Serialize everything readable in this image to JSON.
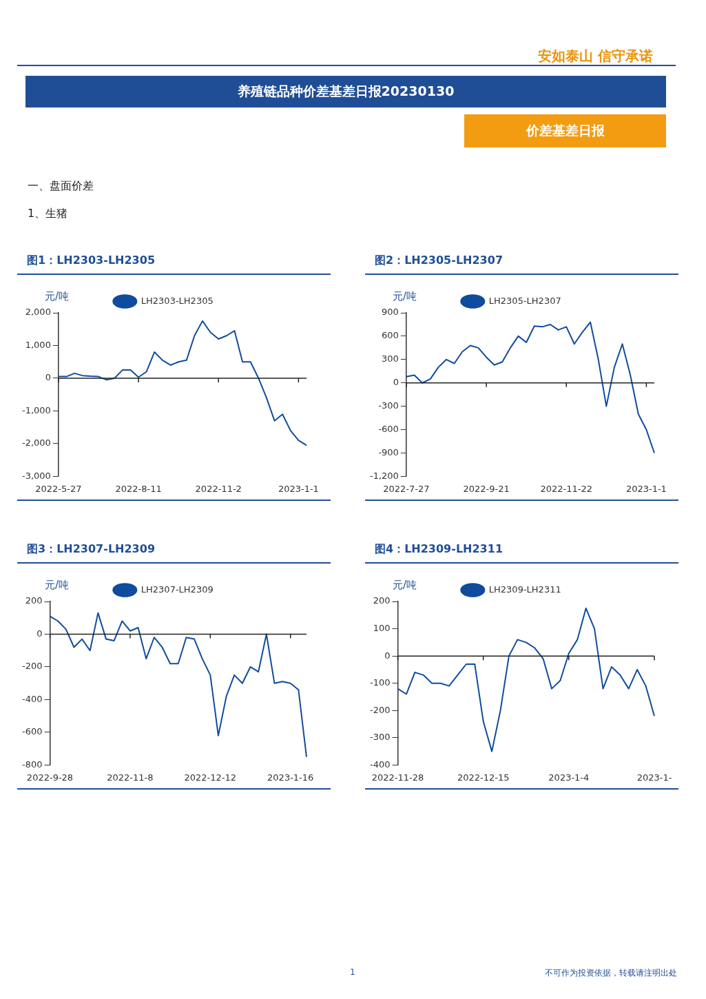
{
  "chart_data": [
    {
      "type": "other",
      "title": "养殖链品种价差基差日报20230130",
      "subtitle": "价差基差日报",
      "annotations": [
        "安如泰山 信守承诺",
        "一、盘面价差",
        "1、生猪",
        "1",
        "不可作为投资依据，转载请注明出处"
      ]
    },
    {
      "type": "line",
      "title": "图1：LH2303-LH2305",
      "ylabel": "元/吨",
      "legend": "top",
      "grid": false,
      "ref_lines": [
        {
          "axis": "y",
          "value": 0,
          "color": "#222222"
        }
      ],
      "categories": [
        "2022-5-27",
        null,
        null,
        null,
        null,
        null,
        null,
        null,
        null,
        null,
        "2022-8-11",
        null,
        null,
        null,
        null,
        null,
        null,
        null,
        null,
        null,
        "2022-11-2",
        null,
        null,
        null,
        null,
        null,
        null,
        null,
        null,
        null,
        "2023-1-1",
        null
      ],
      "ylim": [
        -3000,
        2000
      ],
      "yticks": [
        {
          "value": -3000,
          "label": "-3,000"
        },
        {
          "value": -2000,
          "label": "-2,000"
        },
        {
          "value": -1000,
          "label": "-1,000"
        },
        0,
        {
          "value": 1000,
          "label": "1,000"
        },
        {
          "value": 2000,
          "label": "2,000"
        }
      ],
      "series": [
        {
          "name": "LH2303-LH2305",
          "color": "#0f4c9e",
          "values": [
            50,
            50,
            150,
            80,
            60,
            50,
            -50,
            0,
            250,
            250,
            30,
            200,
            800,
            550,
            400,
            500,
            550,
            1300,
            1750,
            1400,
            1200,
            1300,
            1450,
            500,
            500,
            0,
            -600,
            -1300,
            -1100,
            -1600,
            -1900,
            -2050
          ]
        }
      ]
    },
    {
      "type": "line",
      "title": "图2：LH2305-LH2307",
      "ylabel": "元/吨",
      "legend": "top",
      "grid": false,
      "ref_lines": [
        {
          "axis": "y",
          "value": 0,
          "color": "#222222"
        }
      ],
      "categories": [
        "2022-7-27",
        null,
        null,
        null,
        null,
        null,
        null,
        null,
        null,
        null,
        "2022-9-21",
        null,
        null,
        null,
        null,
        null,
        null,
        null,
        null,
        null,
        "2022-11-22",
        null,
        null,
        null,
        null,
        null,
        null,
        null,
        null,
        null,
        "2023-1-1",
        null
      ],
      "ylim": [
        -1200,
        900
      ],
      "yticks": [
        {
          "value": -1200,
          "label": "-1,200"
        },
        -900,
        -600,
        -300,
        0,
        300,
        600,
        900
      ],
      "series": [
        {
          "name": "LH2305-LH2307",
          "color": "#0f4c9e",
          "values": [
            80,
            100,
            0,
            50,
            200,
            300,
            250,
            400,
            480,
            450,
            330,
            230,
            270,
            450,
            600,
            520,
            730,
            720,
            750,
            680,
            720,
            500,
            650,
            780,
            300,
            -300,
            200,
            500,
            100,
            -400,
            -600,
            -900
          ]
        }
      ]
    },
    {
      "type": "line",
      "title": "图3：LH2307-LH2309",
      "ylabel": "元/吨",
      "legend": "top",
      "grid": false,
      "ref_lines": [
        {
          "axis": "y",
          "value": 0,
          "color": "#222222"
        }
      ],
      "categories": [
        "2022-9-28",
        null,
        null,
        null,
        null,
        null,
        null,
        null,
        null,
        null,
        "2022-11-8",
        null,
        null,
        null,
        null,
        null,
        null,
        null,
        null,
        null,
        "2022-12-12",
        null,
        null,
        null,
        null,
        null,
        null,
        null,
        null,
        null,
        "2023-1-16",
        null,
        null
      ],
      "ylim": [
        -800,
        200
      ],
      "yticks": [
        -800,
        -600,
        -400,
        -200,
        0,
        200
      ],
      "series": [
        {
          "name": "LH2307-LH2309",
          "color": "#0f4c9e",
          "values": [
            110,
            80,
            30,
            -80,
            -30,
            -100,
            130,
            -30,
            -40,
            80,
            20,
            40,
            -150,
            -20,
            -80,
            -180,
            -180,
            -20,
            -30,
            -150,
            -250,
            -620,
            -380,
            -250,
            -300,
            -200,
            -230,
            0,
            -300,
            -290,
            -300,
            -340,
            -750
          ]
        }
      ]
    },
    {
      "type": "line",
      "title": "图4：LH2309-LH2311",
      "ylabel": "元/吨",
      "legend": "top",
      "grid": false,
      "ref_lines": [
        {
          "axis": "y",
          "value": 0,
          "color": "#222222"
        }
      ],
      "categories": [
        "2022-11-28",
        null,
        null,
        null,
        null,
        null,
        null,
        null,
        null,
        null,
        "2022-12-15",
        null,
        null,
        null,
        null,
        null,
        null,
        null,
        null,
        null,
        "2023-1-4",
        null,
        null,
        null,
        null,
        null,
        null,
        null,
        null,
        null,
        "2023-1-"
      ],
      "ylim": [
        -400,
        200
      ],
      "yticks": [
        -400,
        -300,
        -200,
        -100,
        0,
        100,
        200
      ],
      "series": [
        {
          "name": "LH2309-LH2311",
          "color": "#0f4c9e",
          "values": [
            -120,
            -140,
            -60,
            -70,
            -100,
            -100,
            -110,
            -70,
            -30,
            -30,
            -240,
            -350,
            -200,
            0,
            60,
            50,
            30,
            -10,
            -120,
            -90,
            10,
            60,
            175,
            100,
            -120,
            -40,
            -70,
            -120,
            -50,
            -110,
            -220
          ]
        }
      ]
    }
  ]
}
